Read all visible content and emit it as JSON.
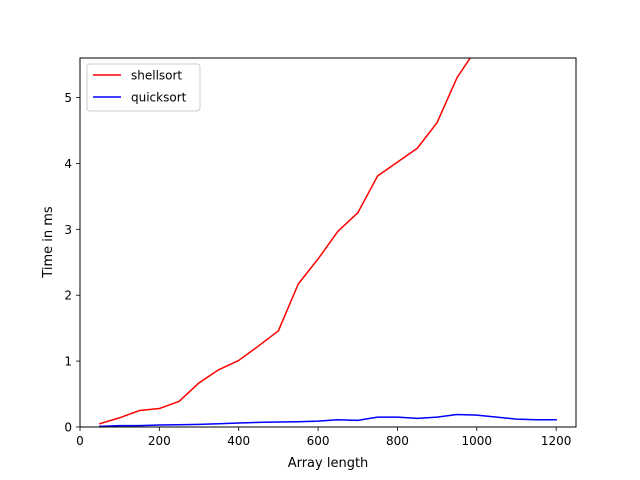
{
  "chart_data": {
    "type": "line",
    "xlabel": "Array length",
    "ylabel": "Time in ms",
    "xlim": [
      0,
      1250
    ],
    "ylim": [
      0,
      5.6
    ],
    "xticks": [
      0,
      200,
      400,
      600,
      800,
      1000,
      1200
    ],
    "yticks": [
      0,
      1,
      2,
      3,
      4,
      5
    ],
    "grid": false,
    "legend_position": "top-left",
    "series": [
      {
        "name": "shellsort",
        "color": "#ff0000",
        "x": [
          50,
          100,
          150,
          200,
          250,
          300,
          350,
          400,
          450,
          500,
          550,
          600,
          650,
          700,
          750,
          800,
          850,
          900,
          950,
          1000
        ],
        "y": [
          0.05,
          0.14,
          0.25,
          0.28,
          0.39,
          0.67,
          0.87,
          1.01,
          1.23,
          1.46,
          2.17,
          2.55,
          2.97,
          3.25,
          3.81,
          4.02,
          4.23,
          4.62,
          5.3,
          5.75
        ]
      },
      {
        "name": "quicksort",
        "color": "#0000ff",
        "x": [
          50,
          100,
          150,
          200,
          250,
          300,
          350,
          400,
          450,
          500,
          550,
          600,
          650,
          700,
          750,
          800,
          850,
          900,
          950,
          1000,
          1050,
          1100,
          1150,
          1200
        ],
        "y": [
          0.01,
          0.02,
          0.02,
          0.03,
          0.035,
          0.04,
          0.05,
          0.06,
          0.07,
          0.075,
          0.08,
          0.09,
          0.11,
          0.1,
          0.15,
          0.15,
          0.13,
          0.15,
          0.19,
          0.18,
          0.15,
          0.12,
          0.11,
          0.11
        ]
      }
    ]
  }
}
